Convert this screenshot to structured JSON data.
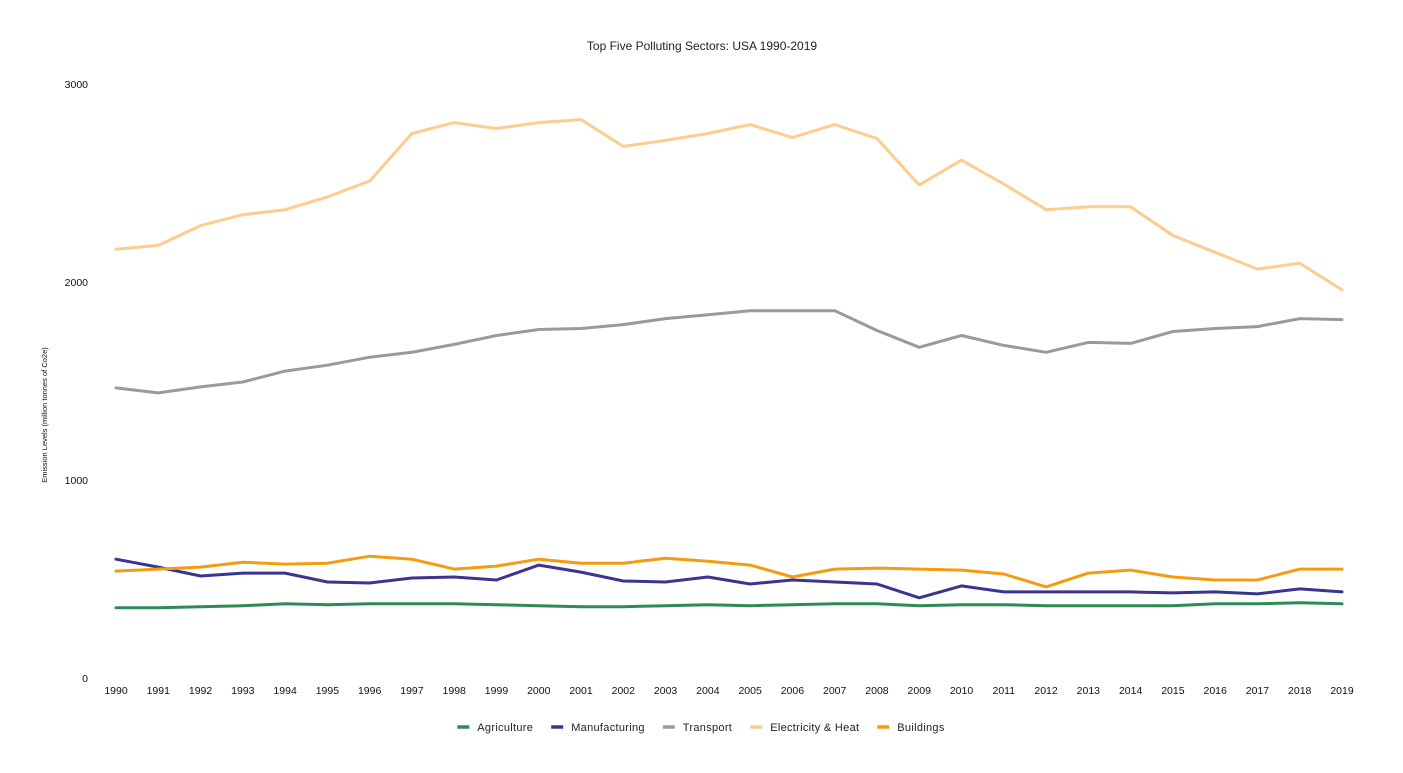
{
  "chart_data": {
    "type": "line",
    "title": "Top Five Polluting Sectors: USA 1990-2019",
    "xlabel": "",
    "ylabel": "Emission Levels (million tonnes of Co2e)",
    "ylim": [
      0,
      3000
    ],
    "yticks": [
      "0",
      "1000",
      "2000",
      "3000"
    ],
    "grid": false,
    "legend_position": "bottom",
    "x": [
      "1990",
      "1991",
      "1992",
      "1993",
      "1994",
      "1995",
      "1996",
      "1997",
      "1998",
      "1999",
      "2000",
      "2001",
      "2002",
      "2003",
      "2004",
      "2005",
      "2006",
      "2007",
      "2008",
      "2009",
      "2010",
      "2011",
      "2012",
      "2013",
      "2014",
      "2015",
      "2016",
      "2017",
      "2018",
      "2019"
    ],
    "series": [
      {
        "name": "Agriculture",
        "color": "#2e8b57",
        "values": [
          355,
          355,
          360,
          365,
          375,
          370,
          375,
          375,
          375,
          370,
          365,
          360,
          360,
          365,
          370,
          365,
          370,
          375,
          375,
          365,
          370,
          370,
          365,
          365,
          365,
          365,
          375,
          375,
          380,
          375
        ]
      },
      {
        "name": "Manufacturing",
        "color": "#3a3590",
        "values": [
          600,
          560,
          515,
          530,
          530,
          485,
          480,
          505,
          510,
          495,
          570,
          535,
          490,
          485,
          510,
          475,
          495,
          485,
          475,
          405,
          465,
          435,
          435,
          435,
          435,
          430,
          435,
          425,
          450,
          435
        ]
      },
      {
        "name": "Transport",
        "color": "#9a9a9a",
        "values": [
          1465,
          1440,
          1470,
          1495,
          1550,
          1580,
          1620,
          1645,
          1685,
          1730,
          1760,
          1765,
          1785,
          1815,
          1835,
          1855,
          1855,
          1855,
          1755,
          1670,
          1730,
          1680,
          1645,
          1695,
          1690,
          1750,
          1765,
          1775,
          1815,
          1810
        ]
      },
      {
        "name": "Electricity & Heat",
        "color": "#fdcc8f",
        "values": [
          2165,
          2185,
          2285,
          2340,
          2365,
          2430,
          2510,
          2750,
          2805,
          2775,
          2805,
          2820,
          2685,
          2715,
          2750,
          2795,
          2730,
          2795,
          2725,
          2490,
          2615,
          2495,
          2365,
          2380,
          2380,
          2235,
          2150,
          2065,
          2095,
          1960
        ]
      },
      {
        "name": "Buildings",
        "color": "#f39c12",
        "values": [
          540,
          550,
          560,
          585,
          575,
          580,
          615,
          600,
          550,
          565,
          600,
          580,
          580,
          605,
          590,
          570,
          510,
          550,
          555,
          550,
          545,
          525,
          460,
          530,
          545,
          510,
          495,
          495,
          550,
          550
        ]
      }
    ]
  }
}
